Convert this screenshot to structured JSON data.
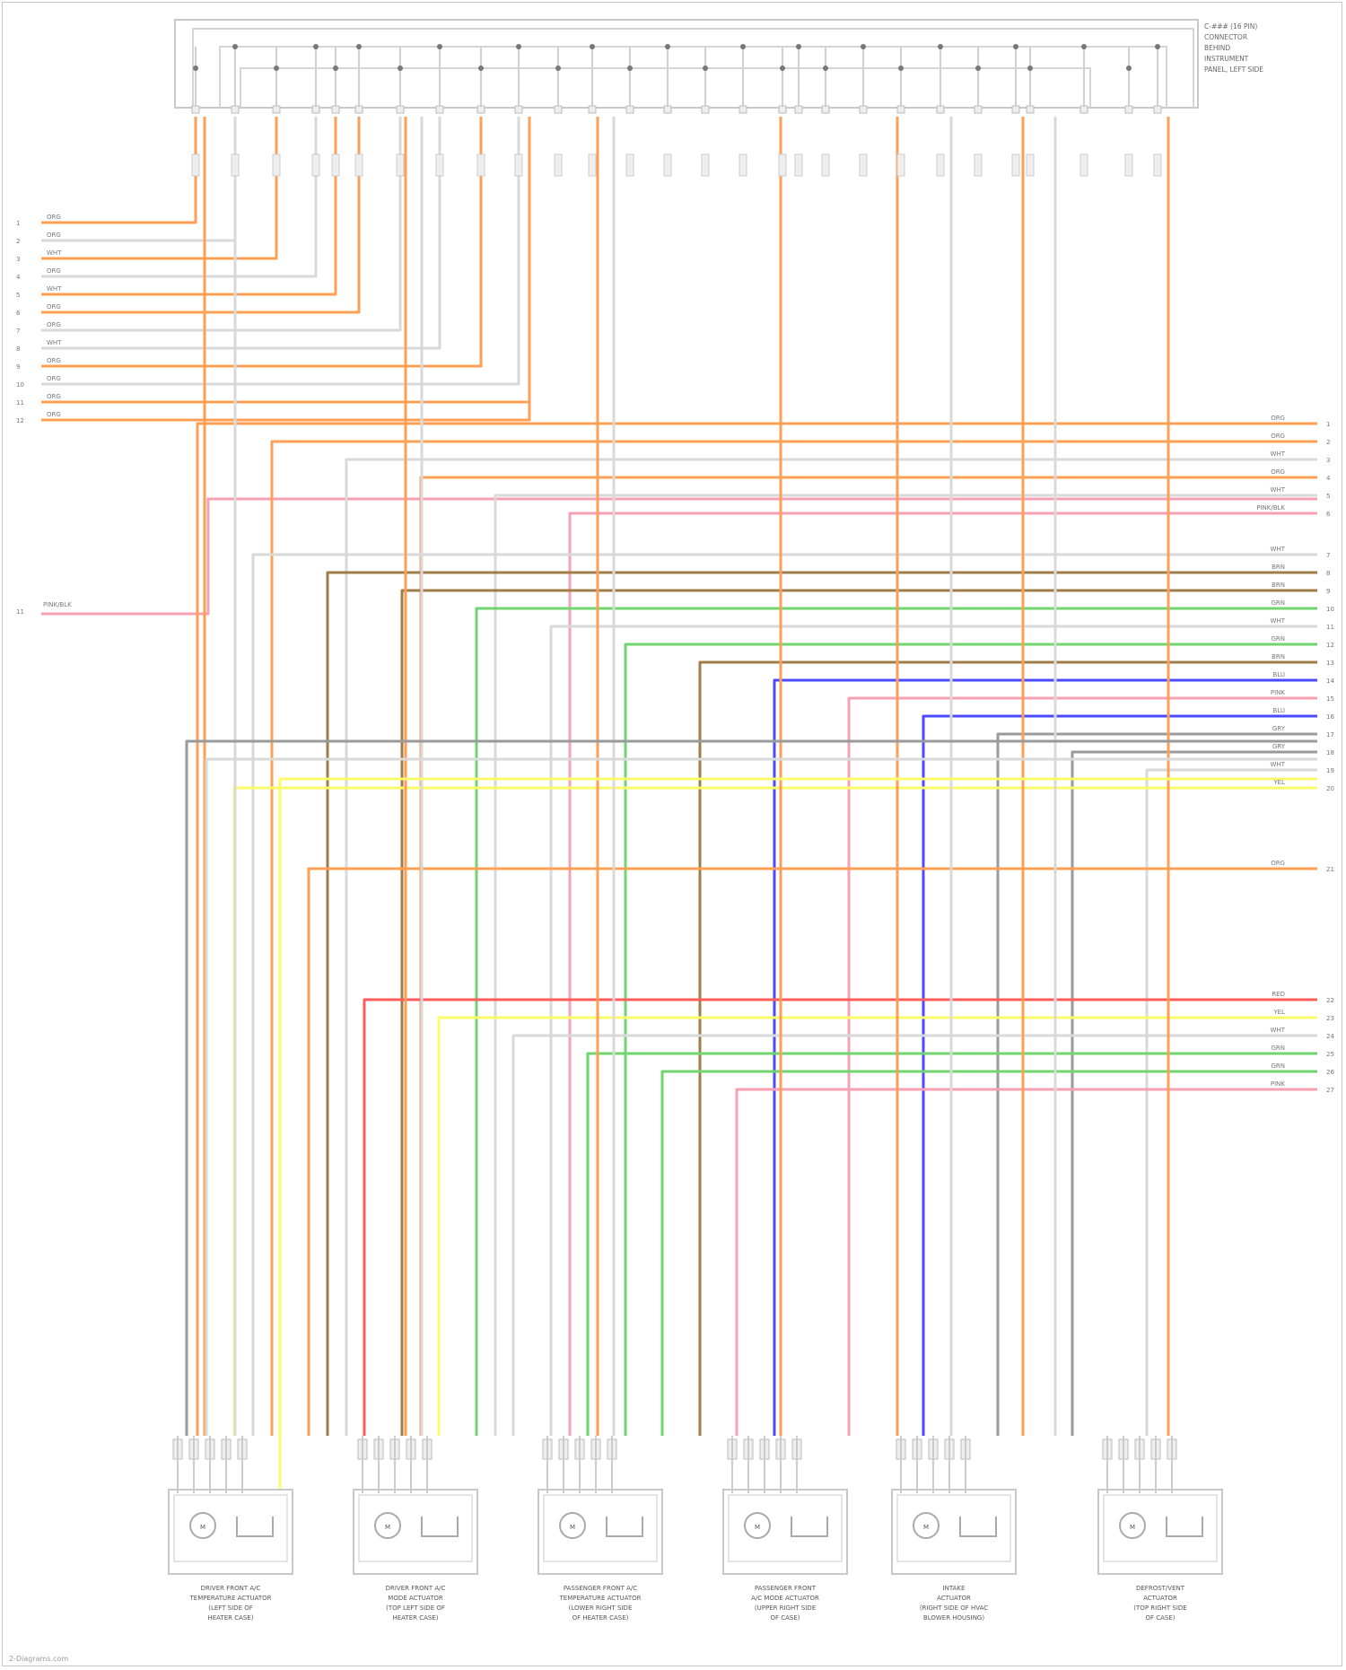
{
  "connector": {
    "title_lines": [
      "C-### (16 PIN)",
      "CONNECTOR",
      "BEHIND",
      "INSTRUMENT",
      "PANEL, LEFT SIDE"
    ]
  },
  "wire_colors": {
    "orange": "#ff9f55",
    "white": "#d9d9d9",
    "pink": "#f7a0b4",
    "brown": "#a07c48",
    "green": "#6fd66f",
    "blue": "#4a4aff",
    "gray": "#9a9a9a",
    "yellow": "#fbfb6a",
    "red": "#ff5c5c"
  },
  "left_harness": {
    "pins": [
      "1",
      "2",
      "3",
      "4",
      "5",
      "6",
      "7",
      "8",
      "9",
      "10",
      "11",
      "12"
    ],
    "wire_labels": [
      "ORG",
      "ORG",
      "WHT",
      "ORG",
      "WHT",
      "ORG",
      "ORG",
      "WHT",
      "ORG",
      "ORG",
      "ORG",
      "ORG"
    ]
  },
  "left_single": {
    "pin": "11",
    "label": "PINK/BLK"
  },
  "right_groups": [
    {
      "pins": [
        "1",
        "2",
        "3",
        "4",
        "5",
        "6"
      ],
      "labels": [
        "ORG",
        "ORG",
        "WHT",
        "ORG",
        "WHT",
        "PINK/BLK"
      ]
    },
    {
      "pins": [
        "7",
        "8",
        "9",
        "10",
        "11",
        "12",
        "13",
        "14",
        "15",
        "16",
        "17",
        "18",
        "19",
        "20"
      ],
      "labels": [
        "WHT",
        "BRN",
        "BRN",
        "GRN",
        "WHT",
        "GRN",
        "BRN",
        "BLU",
        "PINK",
        "BLU",
        "GRY",
        "GRY",
        "WHT",
        "YEL"
      ]
    },
    {
      "pins": [
        "21"
      ],
      "labels": [
        "ORG"
      ]
    },
    {
      "pins": [
        "22",
        "23",
        "24",
        "25",
        "26",
        "27"
      ],
      "labels": [
        "RED",
        "YEL",
        "WHT",
        "GRN",
        "GRN",
        "PINK"
      ]
    }
  ],
  "actuators": [
    {
      "name": "actuator-1",
      "caption": [
        "DRIVER FRONT A/C",
        "TEMPERATURE ACTUATOR",
        "(LEFT SIDE OF",
        "HEATER CASE)"
      ]
    },
    {
      "name": "actuator-2",
      "caption": [
        "DRIVER FRONT A/C",
        "MODE ACTUATOR",
        "(TOP LEFT SIDE OF",
        "HEATER CASE)"
      ]
    },
    {
      "name": "actuator-3",
      "caption": [
        "PASSENGER FRONT A/C",
        "TEMPERATURE ACTUATOR",
        "(LOWER RIGHT SIDE",
        "OF HEATER CASE)"
      ]
    },
    {
      "name": "actuator-4",
      "caption": [
        "PASSENGER FRONT",
        "A/C MODE ACTUATOR",
        "(UPPER RIGHT SIDE",
        "OF CASE)"
      ]
    },
    {
      "name": "actuator-5",
      "caption": [
        "INTAKE",
        "ACTUATOR",
        "(RIGHT SIDE OF HVAC",
        "BLOWER HOUSING)"
      ]
    },
    {
      "name": "actuator-6",
      "caption": [
        "DEFROST/VENT",
        "ACTUATOR",
        "(TOP RIGHT SIDE",
        "OF CASE)"
      ]
    }
  ],
  "footer": {
    "credit": "2-Diagrams.com"
  }
}
